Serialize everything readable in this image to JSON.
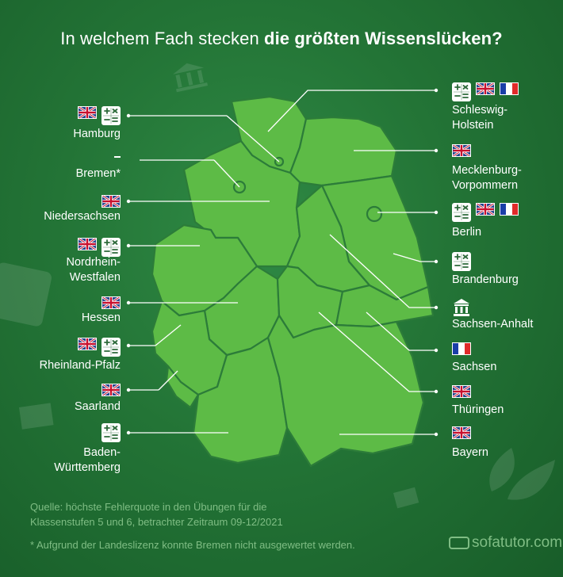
{
  "title": {
    "prefix": "In welchem Fach stecken",
    "bold": "die größten Wissenslücken?"
  },
  "legend_icons": {
    "english": "uk-flag-icon",
    "math": "calculator-icon",
    "french": "france-flag-icon",
    "history": "museum-icon"
  },
  "colors": {
    "background": "#237436",
    "map_fill": "#5dbb46",
    "map_border": "#2c7c39",
    "text": "#ffffff",
    "muted_text": "#7fbd84"
  },
  "states_left": [
    {
      "name": "Hamburg",
      "subjects": [
        "english",
        "math"
      ]
    },
    {
      "name": "Bremen*",
      "subjects": []
    },
    {
      "name": "Niedersachsen",
      "subjects": [
        "english"
      ]
    },
    {
      "name": "Nordrhein-\nWestfalen",
      "subjects": [
        "english",
        "math"
      ]
    },
    {
      "name": "Hessen",
      "subjects": [
        "english"
      ]
    },
    {
      "name": "Rheinland-Pfalz",
      "subjects": [
        "english",
        "math"
      ]
    },
    {
      "name": "Saarland",
      "subjects": [
        "english"
      ]
    },
    {
      "name": "Baden-\nWürttemberg",
      "subjects": [
        "math"
      ]
    }
  ],
  "states_right": [
    {
      "name": "Schleswig-\nHolstein",
      "subjects": [
        "math",
        "english",
        "french"
      ]
    },
    {
      "name": "Mecklenburg-\nVorpommern",
      "subjects": [
        "english"
      ]
    },
    {
      "name": "Berlin",
      "subjects": [
        "math",
        "english",
        "french"
      ]
    },
    {
      "name": "Brandenburg",
      "subjects": [
        "math"
      ]
    },
    {
      "name": "Sachsen-Anhalt",
      "subjects": [
        "history"
      ]
    },
    {
      "name": "Sachsen",
      "subjects": [
        "french"
      ]
    },
    {
      "name": "Thüringen",
      "subjects": [
        "english"
      ]
    },
    {
      "name": "Bayern",
      "subjects": [
        "english"
      ]
    }
  ],
  "source": "Quelle: höchste Fehlerquote in den Übungen für die\nKlassenstufen 5 und 6, betrachter Zeitraum 09-12/2021",
  "footnote": "* Aufgrund der Landeslizenz konnte Bremen nicht ausgewertet werden.",
  "brand": "sofatutor.com"
}
